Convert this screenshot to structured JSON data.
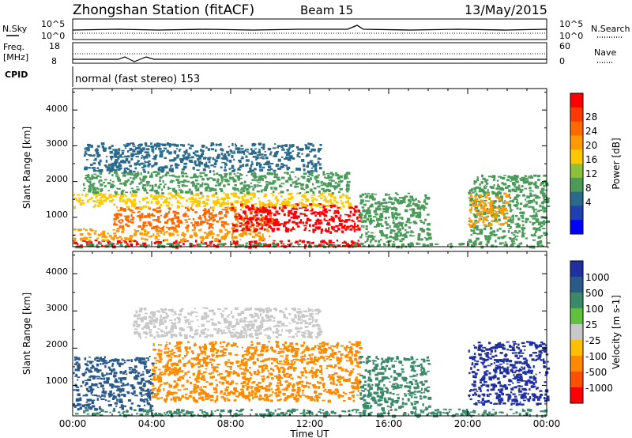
{
  "header": {
    "station": "Zhongshan Station (fitACF)",
    "beam": "Beam 15",
    "date": "13/May/2015"
  },
  "noise_panel": {
    "left_label": "N.Sky",
    "right_label": "N.Search",
    "left_ticks": [
      "10^5",
      "10^0"
    ],
    "right_ticks": [
      "10^5",
      "10^0"
    ]
  },
  "freq_panel": {
    "left_label_1": "Freq.",
    "left_label_2": "[MHz]",
    "left_ticks": [
      "18",
      "8"
    ],
    "right_label": "Nave",
    "right_ticks": [
      "60",
      "0"
    ]
  },
  "cpid_panel": {
    "label": "CPID",
    "text": "normal (fast stereo) 153"
  },
  "axes": {
    "ylabel": "Slant Range [km]",
    "xlabel": "Time UT",
    "y_ticks": [
      "4000",
      "3000",
      "2000",
      "1000"
    ],
    "x_ticks": [
      "00:00",
      "04:00",
      "08:00",
      "12:00",
      "16:00",
      "20:00",
      "00:00"
    ]
  },
  "power_colorbar": {
    "label": "Power [dB]",
    "ticks": [
      "28",
      "24",
      "20",
      "16",
      "12",
      "8",
      "4"
    ],
    "colors": [
      "#ff0000",
      "#ff3a00",
      "#ff6a00",
      "#ff9a00",
      "#ffc800",
      "#8fc03c",
      "#4a9a5a",
      "#2a6a8a",
      "#2040b0",
      "#0000ff"
    ]
  },
  "velocity_colorbar": {
    "label": "Velocity [m s-1]",
    "ticks": [
      "1000",
      "500",
      "100",
      "25",
      "-25",
      "-100",
      "-500",
      "-1000"
    ],
    "colors": [
      "#2030a0",
      "#2a5a8a",
      "#3a8a6a",
      "#60c040",
      "#c8c8c8",
      "#ffc000",
      "#ff8a00",
      "#ff5000",
      "#ff0000"
    ]
  },
  "chart_data": {
    "type": "heatmap",
    "x_range_hours": [
      0,
      24
    ],
    "y_range_km": [
      180,
      4600
    ],
    "power_regions": [
      {
        "t0": 0.0,
        "t1": 14.5,
        "r0": 200,
        "r1": 380,
        "level": 28
      },
      {
        "t0": 0.0,
        "t1": 24.0,
        "r0": 200,
        "r1": 300,
        "level": 12
      },
      {
        "t0": 0.0,
        "t1": 10.0,
        "r0": 380,
        "r1": 700,
        "level": 20
      },
      {
        "t0": 2.0,
        "t1": 10.0,
        "r0": 700,
        "r1": 1300,
        "level": 24
      },
      {
        "t0": 8.0,
        "t1": 14.5,
        "r0": 600,
        "r1": 1400,
        "level": 28
      },
      {
        "t0": 0.0,
        "t1": 14.0,
        "r0": 1300,
        "r1": 1700,
        "level": 16
      },
      {
        "t0": 0.5,
        "t1": 14.0,
        "r0": 1700,
        "r1": 2300,
        "level": 12
      },
      {
        "t0": 0.5,
        "t1": 12.5,
        "r0": 2300,
        "r1": 3100,
        "level": 8
      },
      {
        "t0": 14.5,
        "t1": 18.0,
        "r0": 300,
        "r1": 1700,
        "level": 12
      },
      {
        "t0": 20.0,
        "t1": 24.0,
        "r0": 300,
        "r1": 2200,
        "level": 12
      },
      {
        "t0": 20.0,
        "t1": 22.0,
        "r0": 800,
        "r1": 1700,
        "level": 20
      }
    ],
    "velocity_regions": [
      {
        "t0": 0.0,
        "t1": 24.0,
        "r0": 200,
        "r1": 380,
        "vel": 100
      },
      {
        "t0": 0.0,
        "t1": 4.0,
        "r0": 380,
        "r1": 1800,
        "vel": 500
      },
      {
        "t0": 4.0,
        "t1": 14.5,
        "r0": 600,
        "r1": 2200,
        "vel": -100
      },
      {
        "t0": 3.0,
        "t1": 12.5,
        "r0": 2300,
        "r1": 3100,
        "vel": 25
      },
      {
        "t0": 14.5,
        "t1": 18.0,
        "r0": 400,
        "r1": 1800,
        "vel": 100
      },
      {
        "t0": 20.0,
        "t1": 24.0,
        "r0": 500,
        "r1": 2200,
        "vel": 1000
      }
    ]
  }
}
